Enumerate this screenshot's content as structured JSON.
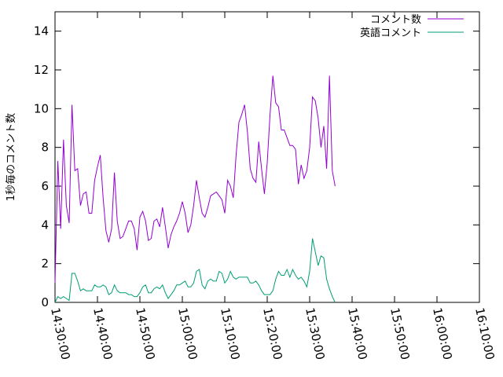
{
  "chart_data": {
    "type": "line",
    "title": "",
    "xlabel": "",
    "ylabel": "1秒毎のコメント数",
    "xlim": [
      "14:30:00",
      "16:10:00"
    ],
    "ylim": [
      0,
      15
    ],
    "x_ticks": [
      "14:30:00",
      "14:40:00",
      "14:50:00",
      "15:00:00",
      "15:10:00",
      "15:20:00",
      "15:30:00",
      "15:40:00",
      "15:50:00",
      "16:00:00",
      "16:10:00"
    ],
    "y_ticks": [
      0,
      2,
      4,
      6,
      8,
      10,
      12,
      14
    ],
    "grid": false,
    "legend_position": "top-right",
    "series": [
      {
        "name": "コメント数",
        "color": "#9400d3",
        "points": [
          [
            "14:30:00",
            1.0
          ],
          [
            "14:30:40",
            7.3
          ],
          [
            "14:31:20",
            3.8
          ],
          [
            "14:32:00",
            8.4
          ],
          [
            "14:32:40",
            5.0
          ],
          [
            "14:33:20",
            4.1
          ],
          [
            "14:34:00",
            10.2
          ],
          [
            "14:34:40",
            6.8
          ],
          [
            "14:35:20",
            6.9
          ],
          [
            "14:36:00",
            5.0
          ],
          [
            "14:36:40",
            5.6
          ],
          [
            "14:37:20",
            5.7
          ],
          [
            "14:38:00",
            4.6
          ],
          [
            "14:38:40",
            4.6
          ],
          [
            "14:39:20",
            6.3
          ],
          [
            "14:40:00",
            7.0
          ],
          [
            "14:40:40",
            7.6
          ],
          [
            "14:41:20",
            5.4
          ],
          [
            "14:42:00",
            3.7
          ],
          [
            "14:42:40",
            3.1
          ],
          [
            "14:43:20",
            3.8
          ],
          [
            "14:44:00",
            6.7
          ],
          [
            "14:44:40",
            4.2
          ],
          [
            "14:45:20",
            3.3
          ],
          [
            "14:46:00",
            3.4
          ],
          [
            "14:46:40",
            3.8
          ],
          [
            "14:47:20",
            4.2
          ],
          [
            "14:48:00",
            4.2
          ],
          [
            "14:48:40",
            3.8
          ],
          [
            "14:49:20",
            2.7
          ],
          [
            "14:50:00",
            4.4
          ],
          [
            "14:50:40",
            4.7
          ],
          [
            "14:51:20",
            4.2
          ],
          [
            "14:52:00",
            3.2
          ],
          [
            "14:52:40",
            3.3
          ],
          [
            "14:53:20",
            4.2
          ],
          [
            "14:54:00",
            4.3
          ],
          [
            "14:54:40",
            3.9
          ],
          [
            "14:55:20",
            4.9
          ],
          [
            "14:56:00",
            3.9
          ],
          [
            "14:56:40",
            2.8
          ],
          [
            "14:57:20",
            3.5
          ],
          [
            "14:58:00",
            3.9
          ],
          [
            "14:58:40",
            4.2
          ],
          [
            "14:59:20",
            4.6
          ],
          [
            "15:00:00",
            5.2
          ],
          [
            "15:00:40",
            4.6
          ],
          [
            "15:01:20",
            3.6
          ],
          [
            "15:02:00",
            4.0
          ],
          [
            "15:02:40",
            5.0
          ],
          [
            "15:03:20",
            6.3
          ],
          [
            "15:04:00",
            5.4
          ],
          [
            "15:04:40",
            4.6
          ],
          [
            "15:05:20",
            4.4
          ],
          [
            "15:06:00",
            4.9
          ],
          [
            "15:06:40",
            5.5
          ],
          [
            "15:07:20",
            5.6
          ],
          [
            "15:08:00",
            5.7
          ],
          [
            "15:08:40",
            5.5
          ],
          [
            "15:09:20",
            5.3
          ],
          [
            "15:10:00",
            4.6
          ],
          [
            "15:10:40",
            6.3
          ],
          [
            "15:11:20",
            6.0
          ],
          [
            "15:12:00",
            5.4
          ],
          [
            "15:12:40",
            7.6
          ],
          [
            "15:13:20",
            9.3
          ],
          [
            "15:14:00",
            9.7
          ],
          [
            "15:14:40",
            10.2
          ],
          [
            "15:15:20",
            8.8
          ],
          [
            "15:16:00",
            6.9
          ],
          [
            "15:16:40",
            6.4
          ],
          [
            "15:17:20",
            6.2
          ],
          [
            "15:18:00",
            8.3
          ],
          [
            "15:18:40",
            6.9
          ],
          [
            "15:19:20",
            5.6
          ],
          [
            "15:20:00",
            7.2
          ],
          [
            "15:20:40",
            9.7
          ],
          [
            "15:21:20",
            11.7
          ],
          [
            "15:22:00",
            10.3
          ],
          [
            "15:22:40",
            10.1
          ],
          [
            "15:23:20",
            8.9
          ],
          [
            "15:24:00",
            8.9
          ],
          [
            "15:24:40",
            8.5
          ],
          [
            "15:25:20",
            8.1
          ],
          [
            "15:26:00",
            8.1
          ],
          [
            "15:26:40",
            7.9
          ],
          [
            "15:27:20",
            6.1
          ],
          [
            "15:28:00",
            7.1
          ],
          [
            "15:28:40",
            6.4
          ],
          [
            "15:29:20",
            6.8
          ],
          [
            "15:30:00",
            8.0
          ],
          [
            "15:30:40",
            10.6
          ],
          [
            "15:31:20",
            10.4
          ],
          [
            "15:32:00",
            9.5
          ],
          [
            "15:32:40",
            8.0
          ],
          [
            "15:33:20",
            9.1
          ],
          [
            "15:34:00",
            6.9
          ],
          [
            "15:34:40",
            11.7
          ],
          [
            "15:35:20",
            6.8
          ],
          [
            "15:36:00",
            6.0
          ]
        ]
      },
      {
        "name": "英語コメント",
        "color": "#009e73",
        "points": [
          [
            "14:30:00",
            0.0
          ],
          [
            "14:30:40",
            0.3
          ],
          [
            "14:31:20",
            0.2
          ],
          [
            "14:32:00",
            0.3
          ],
          [
            "14:32:40",
            0.2
          ],
          [
            "14:33:20",
            0.1
          ],
          [
            "14:34:00",
            1.5
          ],
          [
            "14:34:40",
            1.5
          ],
          [
            "14:35:20",
            1.1
          ],
          [
            "14:36:00",
            0.6
          ],
          [
            "14:36:40",
            0.7
          ],
          [
            "14:37:20",
            0.6
          ],
          [
            "14:38:00",
            0.6
          ],
          [
            "14:38:40",
            0.6
          ],
          [
            "14:39:20",
            0.9
          ],
          [
            "14:40:00",
            0.8
          ],
          [
            "14:40:40",
            0.8
          ],
          [
            "14:41:20",
            0.9
          ],
          [
            "14:42:00",
            0.8
          ],
          [
            "14:42:40",
            0.4
          ],
          [
            "14:43:20",
            0.5
          ],
          [
            "14:44:00",
            0.9
          ],
          [
            "14:44:40",
            0.6
          ],
          [
            "14:45:20",
            0.5
          ],
          [
            "14:46:00",
            0.5
          ],
          [
            "14:46:40",
            0.5
          ],
          [
            "14:47:20",
            0.4
          ],
          [
            "14:48:00",
            0.4
          ],
          [
            "14:48:40",
            0.3
          ],
          [
            "14:49:20",
            0.3
          ],
          [
            "14:50:00",
            0.5
          ],
          [
            "14:50:40",
            0.8
          ],
          [
            "14:51:20",
            0.9
          ],
          [
            "14:52:00",
            0.5
          ],
          [
            "14:52:40",
            0.5
          ],
          [
            "14:53:20",
            0.7
          ],
          [
            "14:54:00",
            0.8
          ],
          [
            "14:54:40",
            0.7
          ],
          [
            "14:55:20",
            0.9
          ],
          [
            "14:56:00",
            0.5
          ],
          [
            "14:56:40",
            0.2
          ],
          [
            "14:57:20",
            0.4
          ],
          [
            "14:58:00",
            0.6
          ],
          [
            "14:58:40",
            0.9
          ],
          [
            "14:59:20",
            0.9
          ],
          [
            "15:00:00",
            1.0
          ],
          [
            "15:00:40",
            1.1
          ],
          [
            "15:01:20",
            0.8
          ],
          [
            "15:02:00",
            0.8
          ],
          [
            "15:02:40",
            1.0
          ],
          [
            "15:03:20",
            1.6
          ],
          [
            "15:04:00",
            1.7
          ],
          [
            "15:04:40",
            0.9
          ],
          [
            "15:05:20",
            0.7
          ],
          [
            "15:06:00",
            1.1
          ],
          [
            "15:06:40",
            1.2
          ],
          [
            "15:07:20",
            1.1
          ],
          [
            "15:08:00",
            1.1
          ],
          [
            "15:08:40",
            1.6
          ],
          [
            "15:09:20",
            1.5
          ],
          [
            "15:10:00",
            1.0
          ],
          [
            "15:10:40",
            1.2
          ],
          [
            "15:11:20",
            1.6
          ],
          [
            "15:12:00",
            1.3
          ],
          [
            "15:12:40",
            1.2
          ],
          [
            "15:13:20",
            1.3
          ],
          [
            "15:14:00",
            1.3
          ],
          [
            "15:14:40",
            1.3
          ],
          [
            "15:15:20",
            1.3
          ],
          [
            "15:16:00",
            1.0
          ],
          [
            "15:16:40",
            1.0
          ],
          [
            "15:17:20",
            1.1
          ],
          [
            "15:18:00",
            0.9
          ],
          [
            "15:18:40",
            0.6
          ],
          [
            "15:19:20",
            0.4
          ],
          [
            "15:20:00",
            0.4
          ],
          [
            "15:20:40",
            0.4
          ],
          [
            "15:21:20",
            0.6
          ],
          [
            "15:22:00",
            1.2
          ],
          [
            "15:22:40",
            1.6
          ],
          [
            "15:23:20",
            1.4
          ],
          [
            "15:24:00",
            1.4
          ],
          [
            "15:24:40",
            1.7
          ],
          [
            "15:25:20",
            1.3
          ],
          [
            "15:26:00",
            1.7
          ],
          [
            "15:26:40",
            1.4
          ],
          [
            "15:27:20",
            1.2
          ],
          [
            "15:28:00",
            1.3
          ],
          [
            "15:28:40",
            1.1
          ],
          [
            "15:29:20",
            0.8
          ],
          [
            "15:30:00",
            1.6
          ],
          [
            "15:30:40",
            3.3
          ],
          [
            "15:31:20",
            2.6
          ],
          [
            "15:32:00",
            1.9
          ],
          [
            "15:32:40",
            2.4
          ],
          [
            "15:33:20",
            2.3
          ],
          [
            "15:34:00",
            1.2
          ],
          [
            "15:34:40",
            0.7
          ],
          [
            "15:35:20",
            0.3
          ],
          [
            "15:36:00",
            0.0
          ]
        ]
      }
    ]
  }
}
